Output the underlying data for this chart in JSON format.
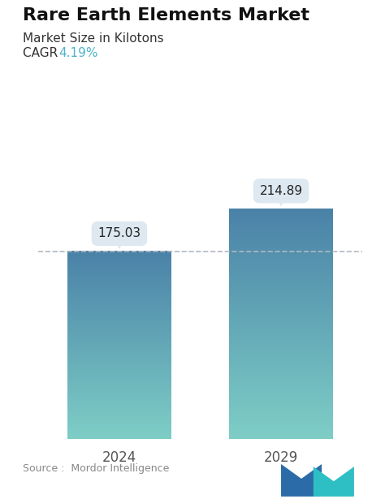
{
  "title": "Rare Earth Elements Market",
  "subtitle": "Market Size in Kilotons",
  "cagr_label": "CAGR ",
  "cagr_value": "4.19%",
  "cagr_color": "#4db3c8",
  "source_text": "Source :  Mordor Intelligence",
  "categories": [
    "2024",
    "2029"
  ],
  "values": [
    175.03,
    214.89
  ],
  "bar_color_top": "#4a82a8",
  "bar_color_bottom": "#7ecec6",
  "bar_width": 0.32,
  "dashed_line_color": "#b0b8c0",
  "label_box_color": "#dde8f0",
  "label_text_color": "#222222",
  "background_color": "#ffffff",
  "title_fontsize": 16,
  "subtitle_fontsize": 11,
  "cagr_fontsize": 11,
  "source_fontsize": 9,
  "tick_fontsize": 12,
  "value_fontsize": 11,
  "ylim_min": 0,
  "ylim_max": 270
}
